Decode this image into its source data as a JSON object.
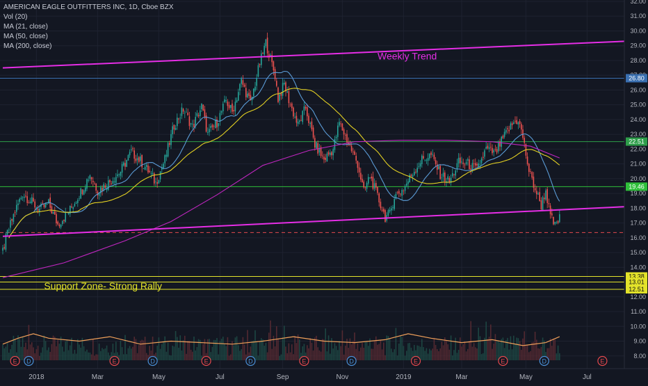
{
  "chart_data": {
    "type": "candlestick",
    "title": "AMERICAN EAGLE OUTFITTERS INC, 1D, Cboe BZX",
    "indicators": [
      "Vol (20)",
      "MA (21, close)",
      "MA (50, close)",
      "MA (200, close)"
    ],
    "x_ticks": [
      "2018",
      "Mar",
      "May",
      "Jul",
      "Sep",
      "Nov",
      "2019",
      "Mar",
      "May",
      "Jul"
    ],
    "y_ticks": [
      8.0,
      9.0,
      10.0,
      11.0,
      12.0,
      13.0,
      14.0,
      15.0,
      16.0,
      17.0,
      18.0,
      19.0,
      20.0,
      21.0,
      22.0,
      23.0,
      24.0,
      25.0,
      26.0,
      27.0,
      28.0,
      29.0,
      30.0,
      31.0,
      32.0
    ],
    "ylim": [
      7.6,
      32.0
    ],
    "y_scale": "linear",
    "price_path": [
      {
        "t": 0,
        "p": 15.1
      },
      {
        "t": 3,
        "p": 16.3
      },
      {
        "t": 8,
        "p": 17.8
      },
      {
        "t": 13,
        "p": 19.0
      },
      {
        "t": 18,
        "p": 18.5
      },
      {
        "t": 24,
        "p": 17.9
      },
      {
        "t": 30,
        "p": 18.3
      },
      {
        "t": 36,
        "p": 16.9
      },
      {
        "t": 44,
        "p": 17.9
      },
      {
        "t": 52,
        "p": 19.3
      },
      {
        "t": 57,
        "p": 20.3
      },
      {
        "t": 62,
        "p": 19.2
      },
      {
        "t": 70,
        "p": 19.8
      },
      {
        "t": 77,
        "p": 20.5
      },
      {
        "t": 84,
        "p": 21.8
      },
      {
        "t": 90,
        "p": 21.2
      },
      {
        "t": 96,
        "p": 20.4
      },
      {
        "t": 100,
        "p": 19.7
      },
      {
        "t": 106,
        "p": 21.3
      },
      {
        "t": 112,
        "p": 23.6
      },
      {
        "t": 118,
        "p": 24.7
      },
      {
        "t": 124,
        "p": 23.5
      },
      {
        "t": 130,
        "p": 24.9
      },
      {
        "t": 134,
        "p": 23.0
      },
      {
        "t": 140,
        "p": 23.8
      },
      {
        "t": 146,
        "p": 25.3
      },
      {
        "t": 150,
        "p": 24.5
      },
      {
        "t": 156,
        "p": 26.6
      },
      {
        "t": 162,
        "p": 25.1
      },
      {
        "t": 168,
        "p": 27.8
      },
      {
        "t": 172,
        "p": 29.2
      },
      {
        "t": 175,
        "p": 28.1
      },
      {
        "t": 178,
        "p": 27.0
      },
      {
        "t": 180,
        "p": 25.4
      },
      {
        "t": 184,
        "p": 26.4
      },
      {
        "t": 188,
        "p": 25.0
      },
      {
        "t": 193,
        "p": 23.6
      },
      {
        "t": 198,
        "p": 24.8
      },
      {
        "t": 204,
        "p": 22.3
      },
      {
        "t": 210,
        "p": 21.3
      },
      {
        "t": 216,
        "p": 22.0
      },
      {
        "t": 220,
        "p": 23.8
      },
      {
        "t": 226,
        "p": 22.4
      },
      {
        "t": 232,
        "p": 21.0
      },
      {
        "t": 236,
        "p": 19.1
      },
      {
        "t": 240,
        "p": 20.2
      },
      {
        "t": 246,
        "p": 18.5
      },
      {
        "t": 250,
        "p": 17.4
      },
      {
        "t": 253,
        "p": 17.6
      },
      {
        "t": 256,
        "p": 18.8
      },
      {
        "t": 262,
        "p": 19.3
      },
      {
        "t": 268,
        "p": 20.4
      },
      {
        "t": 274,
        "p": 21.3
      },
      {
        "t": 280,
        "p": 21.6
      },
      {
        "t": 286,
        "p": 20.3
      },
      {
        "t": 292,
        "p": 19.8
      },
      {
        "t": 298,
        "p": 21.1
      },
      {
        "t": 304,
        "p": 21.0
      },
      {
        "t": 310,
        "p": 20.6
      },
      {
        "t": 316,
        "p": 22.0
      },
      {
        "t": 322,
        "p": 21.7
      },
      {
        "t": 328,
        "p": 22.9
      },
      {
        "t": 334,
        "p": 23.8
      },
      {
        "t": 337,
        "p": 24.0
      },
      {
        "t": 340,
        "p": 22.8
      },
      {
        "t": 344,
        "p": 20.5
      },
      {
        "t": 348,
        "p": 19.3
      },
      {
        "t": 352,
        "p": 18.2
      },
      {
        "t": 355,
        "p": 19.2
      },
      {
        "t": 358,
        "p": 17.4
      },
      {
        "t": 361,
        "p": 16.8
      },
      {
        "t": 364,
        "p": 17.3
      }
    ],
    "volume_ma_path": [
      {
        "t": 0,
        "p": 8.8
      },
      {
        "t": 10,
        "p": 9.2
      },
      {
        "t": 20,
        "p": 9.5
      },
      {
        "t": 30,
        "p": 9.2
      },
      {
        "t": 50,
        "p": 9.0
      },
      {
        "t": 70,
        "p": 9.3
      },
      {
        "t": 90,
        "p": 8.8
      },
      {
        "t": 110,
        "p": 9.0
      },
      {
        "t": 130,
        "p": 8.9
      },
      {
        "t": 150,
        "p": 8.8
      },
      {
        "t": 170,
        "p": 9.0
      },
      {
        "t": 190,
        "p": 9.3
      },
      {
        "t": 210,
        "p": 9.0
      },
      {
        "t": 230,
        "p": 8.9
      },
      {
        "t": 250,
        "p": 9.1
      },
      {
        "t": 265,
        "p": 9.5
      },
      {
        "t": 280,
        "p": 9.2
      },
      {
        "t": 300,
        "p": 8.9
      },
      {
        "t": 320,
        "p": 9.1
      },
      {
        "t": 340,
        "p": 8.7
      },
      {
        "t": 355,
        "p": 8.9
      },
      {
        "t": 364,
        "p": 9.3
      }
    ],
    "ma200_path": [
      {
        "t": 0,
        "p": 13.3
      },
      {
        "t": 40,
        "p": 14.3
      },
      {
        "t": 80,
        "p": 15.8
      },
      {
        "t": 110,
        "p": 17.1
      },
      {
        "t": 140,
        "p": 18.9
      },
      {
        "t": 170,
        "p": 20.9
      },
      {
        "t": 200,
        "p": 21.9
      },
      {
        "t": 230,
        "p": 22.5
      },
      {
        "t": 260,
        "p": 22.6
      },
      {
        "t": 290,
        "p": 22.6
      },
      {
        "t": 320,
        "p": 22.5
      },
      {
        "t": 345,
        "p": 22.2
      },
      {
        "t": 364,
        "p": 21.4
      }
    ],
    "horizontal_levels": [
      {
        "value": 26.8,
        "label": "26.80",
        "color": "#3a6fb0"
      },
      {
        "value": 22.51,
        "label": "22.51",
        "color": "#2e9d4a"
      },
      {
        "value": 19.46,
        "label": "19.46",
        "color": "#2fbf3a"
      },
      {
        "value": 13.38,
        "label": "13.38",
        "color": "#e3e32a"
      },
      {
        "value": 13.0,
        "label": "13.01",
        "color": "#e3e32a"
      },
      {
        "value": 12.51,
        "label": "12.51",
        "color": "#e3e32a"
      }
    ],
    "dashed_level": {
      "value": 16.35,
      "color": "#e5484d"
    },
    "trendlines": [
      {
        "name": "upper",
        "start": {
          "t": 0,
          "p": 27.5
        },
        "end": {
          "t": 459,
          "p": 29.3
        },
        "color": "#e62ee6"
      },
      {
        "name": "lower",
        "start": {
          "t": 0,
          "p": 16.1
        },
        "end": {
          "t": 459,
          "p": 18.1
        },
        "color": "#e62ee6"
      }
    ],
    "annotations": [
      {
        "text": "Weekly Trend",
        "t": 245,
        "p": 28.3,
        "color": "#e62ee6"
      },
      {
        "text": "Support Zone- Strong Rally",
        "t": 27,
        "p": 12.75,
        "color": "#e3e32a"
      }
    ],
    "event_markers": [
      {
        "letter": "E",
        "t": 8,
        "type": "earnings"
      },
      {
        "letter": "D",
        "t": 17,
        "type": "dividend"
      },
      {
        "letter": "E",
        "t": 73,
        "type": "earnings"
      },
      {
        "letter": "D",
        "t": 98,
        "type": "dividend"
      },
      {
        "letter": "E",
        "t": 133,
        "type": "earnings"
      },
      {
        "letter": "D",
        "t": 162,
        "type": "dividend"
      },
      {
        "letter": "E",
        "t": 197,
        "type": "earnings"
      },
      {
        "letter": "D",
        "t": 228,
        "type": "dividend"
      },
      {
        "letter": "E",
        "t": 270,
        "type": "earnings"
      },
      {
        "letter": "E",
        "t": 327,
        "type": "earnings"
      },
      {
        "letter": "D",
        "t": 354,
        "type": "dividend"
      },
      {
        "letter": "E",
        "t": 392,
        "type": "earnings"
      }
    ]
  },
  "colors": {
    "background": "#131722",
    "up": "#26a69a",
    "down": "#ef5350",
    "ma21": "#5b9bd5",
    "ma50": "#e3d022",
    "ma200": "#c026c0",
    "volume_ma": "#f0a05a",
    "axis_text": "#b2b5be",
    "grid": "#1e2230"
  }
}
